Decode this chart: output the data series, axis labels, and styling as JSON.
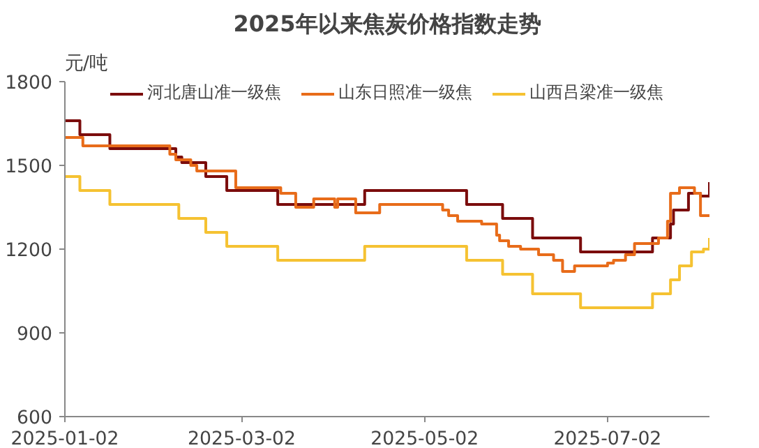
{
  "chart_data": {
    "type": "step",
    "title": "2025年以来焦炭价格指数走势",
    "ylabel": "元/吨",
    "xlim": [
      "2025-01-02",
      "2025-08-05"
    ],
    "xticks": [
      "2025-01-02",
      "2025-03-02",
      "2025-05-02",
      "2025-07-02"
    ],
    "ylim": [
      600,
      1800
    ],
    "yticks": [
      600,
      900,
      1200,
      1500,
      1800
    ],
    "grid": false,
    "legend": "top",
    "line_style": "solid",
    "series": [
      {
        "name": "河北唐山准一级焦",
        "color": "#7b0c0c",
        "x": [
          "2025-01-02",
          "2025-01-07",
          "2025-01-17",
          "2025-02-08",
          "2025-02-10",
          "2025-02-18",
          "2025-02-25",
          "2025-03-14",
          "2025-04-12",
          "2025-05-16",
          "2025-05-28",
          "2025-06-07",
          "2025-06-23",
          "2025-07-17",
          "2025-07-23",
          "2025-07-24",
          "2025-07-29",
          "2025-08-02",
          "2025-08-05"
        ],
        "values": [
          1660,
          1610,
          1560,
          1530,
          1510,
          1460,
          1410,
          1360,
          1410,
          1360,
          1310,
          1240,
          1190,
          1240,
          1290,
          1340,
          1400,
          1390,
          1440
        ]
      },
      {
        "name": "山东日照准一级焦",
        "color": "#e86c1a",
        "x": [
          "2025-01-02",
          "2025-01-08",
          "2025-02-06",
          "2025-02-08",
          "2025-02-13",
          "2025-02-15",
          "2025-02-28",
          "2025-03-15",
          "2025-03-20",
          "2025-03-26",
          "2025-04-02",
          "2025-04-03",
          "2025-04-09",
          "2025-04-17",
          "2025-05-08",
          "2025-05-10",
          "2025-05-13",
          "2025-05-21",
          "2025-05-26",
          "2025-05-27",
          "2025-05-30",
          "2025-06-03",
          "2025-06-09",
          "2025-06-14",
          "2025-06-17",
          "2025-06-21",
          "2025-07-02",
          "2025-07-04",
          "2025-07-08",
          "2025-07-11",
          "2025-07-19",
          "2025-07-22",
          "2025-07-23",
          "2025-07-26",
          "2025-07-31",
          "2025-08-02",
          "2025-08-05"
        ],
        "values": [
          1600,
          1570,
          1540,
          1520,
          1500,
          1480,
          1420,
          1400,
          1350,
          1380,
          1350,
          1380,
          1330,
          1360,
          1340,
          1320,
          1300,
          1290,
          1250,
          1230,
          1210,
          1200,
          1180,
          1160,
          1120,
          1140,
          1150,
          1160,
          1180,
          1220,
          1240,
          1300,
          1400,
          1420,
          1400,
          1320,
          1320
        ]
      },
      {
        "name": "山西吕梁准一级焦",
        "color": "#f5c232",
        "x": [
          "2025-01-02",
          "2025-01-07",
          "2025-01-17",
          "2025-02-09",
          "2025-02-18",
          "2025-02-25",
          "2025-03-14",
          "2025-04-12",
          "2025-05-16",
          "2025-05-28",
          "2025-06-07",
          "2025-06-23",
          "2025-07-17",
          "2025-07-23",
          "2025-07-26",
          "2025-07-30",
          "2025-08-03",
          "2025-08-05"
        ],
        "values": [
          1460,
          1410,
          1360,
          1310,
          1260,
          1210,
          1160,
          1210,
          1160,
          1110,
          1040,
          990,
          1040,
          1090,
          1140,
          1190,
          1200,
          1240
        ]
      }
    ]
  }
}
